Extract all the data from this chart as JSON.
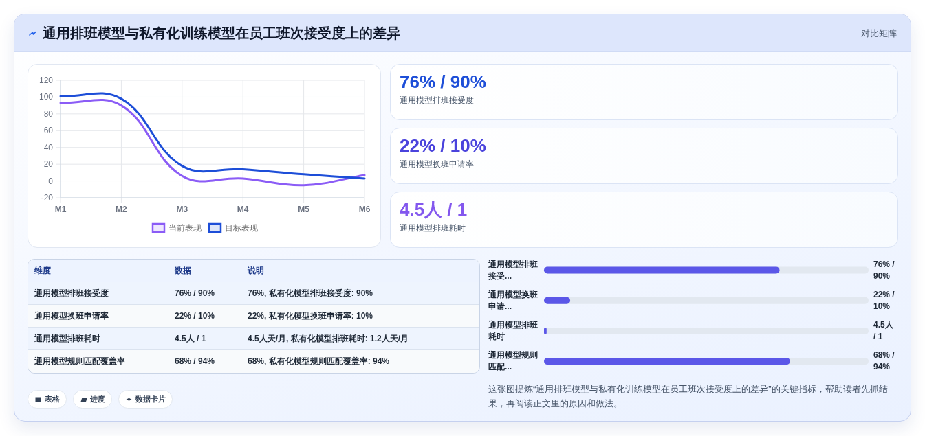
{
  "chart_data": [
    {
      "type": "other",
      "title": "通用排班模型与私有化训练模型在员工班次接受度上的差异",
      "subtitle": "对比矩阵"
    },
    {
      "type": "line",
      "categories": [
        "M1",
        "M2",
        "M3",
        "M4",
        "M5",
        "M6"
      ],
      "series": [
        {
          "name": "当前表现",
          "color": "#8b5cf6",
          "values": [
            93,
            90,
            6,
            3,
            -5,
            7
          ]
        },
        {
          "name": "目标表现",
          "color": "#1d4ed8",
          "values": [
            101,
            98,
            18,
            14,
            8,
            3
          ]
        }
      ],
      "ylim": [
        -20,
        120
      ],
      "yticks": [
        -20,
        0,
        20,
        40,
        60,
        80,
        100,
        120
      ],
      "grid": true,
      "legend": "bottom"
    },
    {
      "type": "other",
      "title": "通用模型排班接受度",
      "annotations": [
        "76% / 90%"
      ]
    },
    {
      "type": "other",
      "title": "通用模型换班申请率",
      "annotations": [
        "22% / 10%"
      ]
    },
    {
      "type": "other",
      "title": "通用模型排班耗时",
      "annotations": [
        "4.5人 / 1"
      ]
    },
    {
      "type": "other",
      "annotations": [
        "维度",
        "数据",
        "说明",
        "通用模型排班接受度",
        "76% / 90%",
        "76%, 私有化模型排班接受度: 90%",
        "通用模型换班申请率",
        "22% / 10%",
        "22%, 私有化模型换班申请率: 10%",
        "通用模型排班耗时",
        "4.5人 / 1",
        "4.5人天/月, 私有化模型排班耗时: 1.2人天/月",
        "通用模型规则匹配覆盖率",
        "68% / 94%",
        "68%, 私有化模型规则匹配覆盖率: 94%"
      ]
    },
    {
      "type": "bar",
      "orientation": "horizontal",
      "categories": [
        "通用模型排班接受...",
        "通用模型换班申请...",
        "通用模型排班耗时",
        "通用模型规则匹配..."
      ],
      "series": [
        {
          "color": "#5b57e8",
          "values": [
            90,
            10,
            1,
            94
          ],
          "value_labels": [
            "76% / 90%",
            "22% / 10%",
            "4.5人 / 1",
            "68% / 94%"
          ]
        }
      ],
      "annotations": [
        "这张图提炼“通用排班模型与私有化训练模型在员工班次接受度上的差异”的关键指标，帮助读者先抓结果，再阅读正文里的原因和做法。"
      ]
    },
    {
      "type": "other",
      "annotations": [
        "表格",
        "进度",
        "数据卡片"
      ]
    }
  ]
}
